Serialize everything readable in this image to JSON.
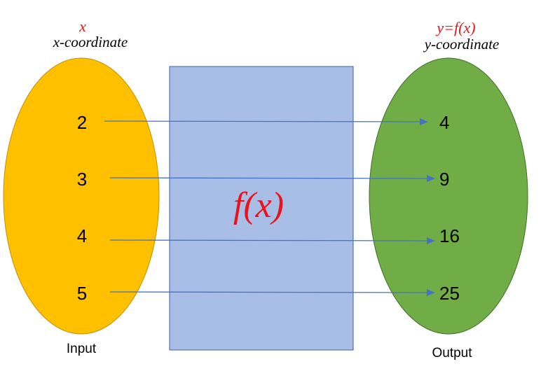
{
  "input": {
    "var_label": "x",
    "title": "x-coordinate",
    "caption": "Input",
    "values": [
      "2",
      "3",
      "4",
      "5"
    ],
    "color": "#ffc000"
  },
  "function_box": {
    "label": "f(x)",
    "color": "#a9bee6"
  },
  "output": {
    "var_label": "y=f(x)",
    "title": "y-coordinate",
    "caption": "Output",
    "values": [
      "4",
      "9",
      "16",
      "25"
    ],
    "color": "#70ad47"
  },
  "arrow_color": "#4472c4",
  "label_color": "#e8141b"
}
